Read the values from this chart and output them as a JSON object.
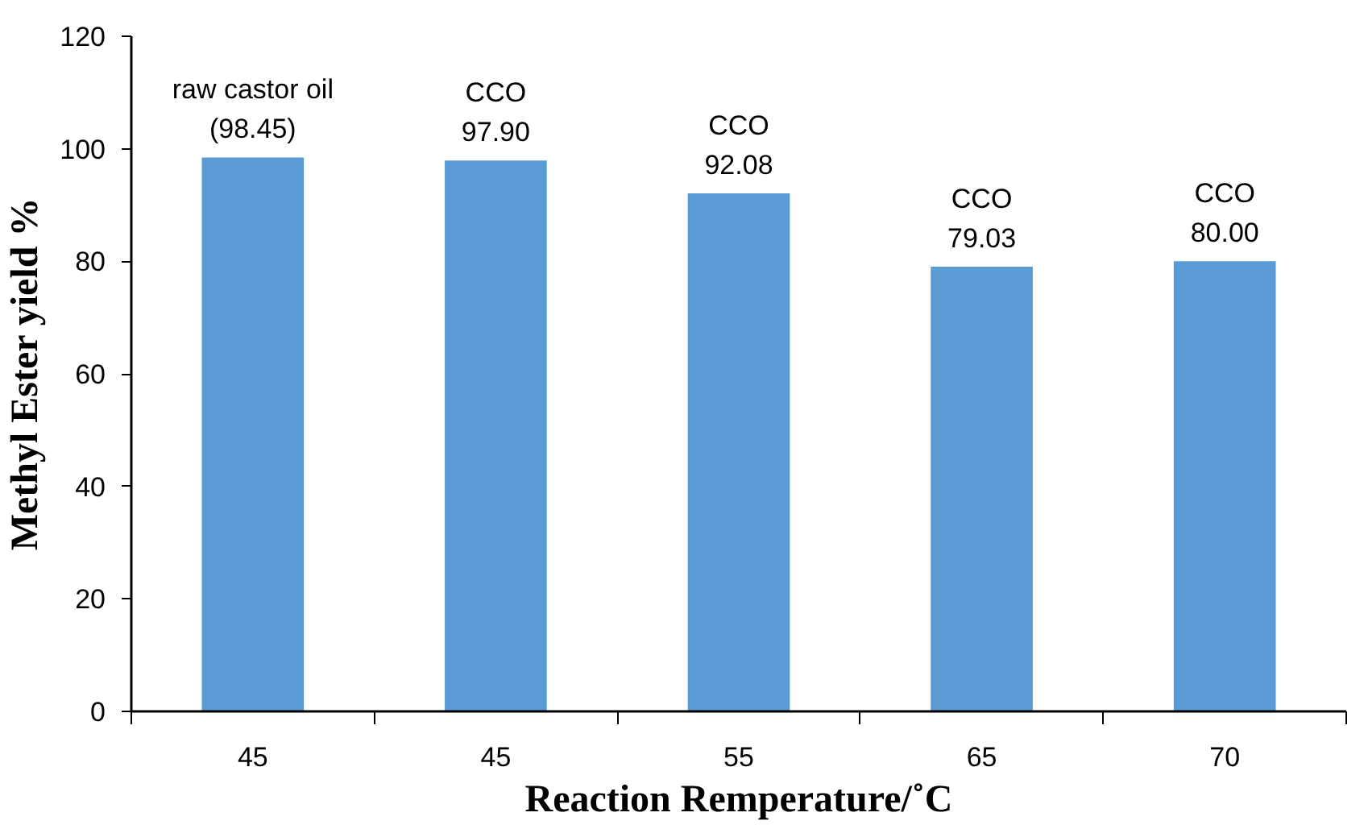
{
  "chart_data": {
    "type": "bar",
    "xlabel": "Reaction Remperature/˚C",
    "ylabel": "Methyl Ester yield %",
    "categories": [
      "45",
      "45",
      "55",
      "65",
      "70"
    ],
    "values": [
      98.45,
      97.9,
      92.08,
      79.03,
      80.0
    ],
    "value_labels": [
      "raw castor oil\n(98.45)",
      "CCO\n97.90",
      "CCO\n92.08",
      "CCO\n79.03",
      "CCO\n80.00"
    ],
    "color": "#5b9bd5",
    "ylim": [
      0,
      120
    ],
    "yticks": [
      0,
      20,
      40,
      60,
      80,
      100,
      120
    ],
    "grid": false
  }
}
